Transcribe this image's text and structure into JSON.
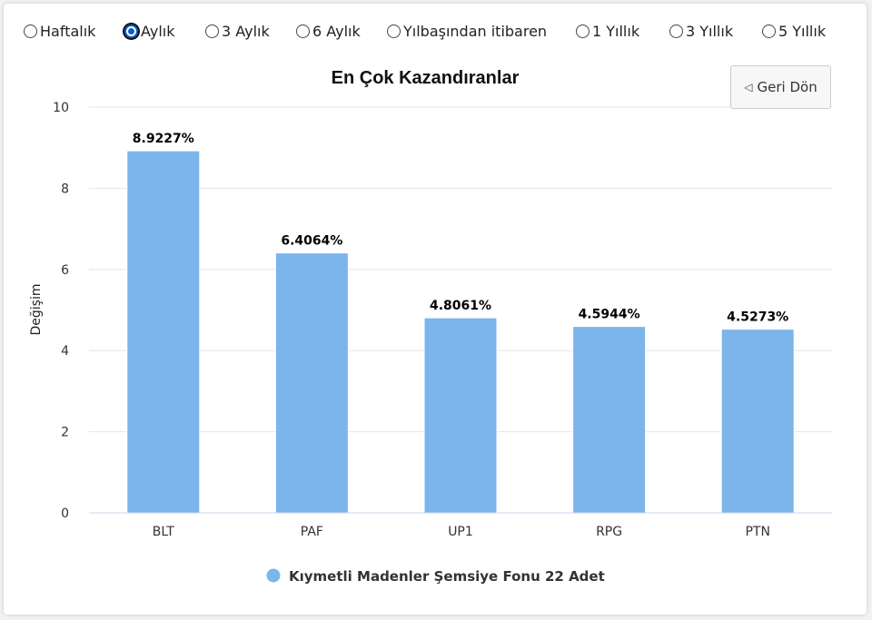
{
  "periods": {
    "options": [
      {
        "label": "Haftalık",
        "checked": false
      },
      {
        "label": "Aylık",
        "checked": true
      },
      {
        "label": "3 Aylık",
        "checked": false
      },
      {
        "label": "6 Aylık",
        "checked": false
      },
      {
        "label": "Yılbaşından itibaren",
        "checked": false
      },
      {
        "label": "1 Yıllık",
        "checked": false
      },
      {
        "label": "3 Yıllık",
        "checked": false
      },
      {
        "label": "5 Yıllık",
        "checked": false
      }
    ]
  },
  "back_button": {
    "label": "Geri Dön",
    "icon": "triangle-left-icon"
  },
  "chart_data": {
    "type": "bar",
    "title": "En Çok Kazandıranlar",
    "ylabel": "Değişim",
    "ylim": [
      0,
      10
    ],
    "yticks": [
      0,
      2,
      4,
      6,
      8,
      10
    ],
    "categories": [
      "BLT",
      "PAF",
      "UP1",
      "RPG",
      "PTN"
    ],
    "series": [
      {
        "name": "Kıymetli Madenler Şemsiye Fonu 22 Adet",
        "values": [
          8.9227,
          6.4064,
          4.8061,
          4.5944,
          4.5273
        ],
        "labels": [
          "8.9227%",
          "6.4064%",
          "4.8061%",
          "4.5944%",
          "4.5273%"
        ],
        "color": "#7cb5ec"
      }
    ],
    "grid": true,
    "legend": "bottom-center"
  }
}
